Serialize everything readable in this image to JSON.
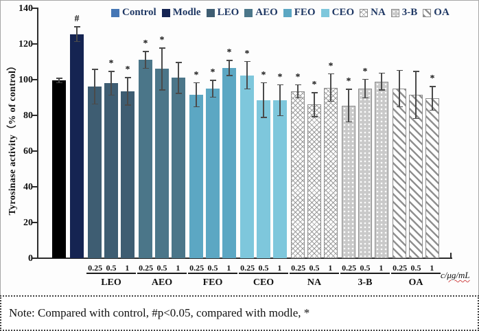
{
  "note": {
    "text": "Note: Compared with control, #p<0.05, compared with modle, *"
  },
  "chart_data": {
    "type": "bar",
    "title": "",
    "ylabel": "Tyrosinase activity（% of control）",
    "xlabel_prefix": "c/",
    "xlabel_unit": "μg/mL",
    "ylim": [
      0,
      140
    ],
    "yticks": [
      140,
      120,
      100,
      80,
      60,
      40,
      20,
      0
    ],
    "grid": false,
    "legend_position": "top",
    "significance_marks": {
      "hash": "#",
      "star": "*"
    },
    "groups": [
      {
        "name": "Control",
        "bar_color": "#000000",
        "legend_color": "#4576B5",
        "bars": [
          {
            "conc": "",
            "value": 99.5,
            "err": 1.5,
            "sig": ""
          }
        ]
      },
      {
        "name": "Modle",
        "bar_color": "#152452",
        "legend_color": "#152452",
        "bars": [
          {
            "conc": "",
            "value": 125.5,
            "err": 4.5,
            "sig": "#"
          }
        ]
      },
      {
        "name": "LEO",
        "bar_color": "#3E5D72",
        "legend_color": "#3E5D72",
        "bars": [
          {
            "conc": "0.25",
            "value": 96,
            "err": 10,
            "sig": ""
          },
          {
            "conc": "0.5",
            "value": 98,
            "err": 7,
            "sig": "*"
          },
          {
            "conc": "1",
            "value": 93.5,
            "err": 8,
            "sig": "*"
          }
        ]
      },
      {
        "name": "AEO",
        "bar_color": "#4B7689",
        "legend_color": "#4B7689",
        "bars": [
          {
            "conc": "0.25",
            "value": 111,
            "err": 5,
            "sig": "*"
          },
          {
            "conc": "0.5",
            "value": 106,
            "err": 12,
            "sig": "*"
          },
          {
            "conc": "1",
            "value": 101,
            "err": 9,
            "sig": ""
          }
        ]
      },
      {
        "name": "FEO",
        "bar_color": "#5CA7C3",
        "legend_color": "#5CA7C3",
        "bars": [
          {
            "conc": "0.25",
            "value": 91.5,
            "err": 7,
            "sig": "*"
          },
          {
            "conc": "0.5",
            "value": 95,
            "err": 5,
            "sig": "*"
          },
          {
            "conc": "1",
            "value": 106.5,
            "err": 4.5,
            "sig": "*"
          }
        ]
      },
      {
        "name": "CEO",
        "bar_color": "#7EC7DC",
        "legend_color": "#7EC7DC",
        "bars": [
          {
            "conc": "0.25",
            "value": 102.5,
            "err": 8,
            "sig": "*"
          },
          {
            "conc": "0.5",
            "value": 88.5,
            "err": 10,
            "sig": "*"
          },
          {
            "conc": "1",
            "value": 88.5,
            "err": 9,
            "sig": "*"
          }
        ]
      },
      {
        "name": "NA",
        "pattern": "crosshatch",
        "bars": [
          {
            "conc": "0.25",
            "value": 93.5,
            "err": 4,
            "sig": "*"
          },
          {
            "conc": "0.5",
            "value": 86,
            "err": 7,
            "sig": "*"
          },
          {
            "conc": "1",
            "value": 95.5,
            "err": 8,
            "sig": "*"
          }
        ]
      },
      {
        "name": "3-B",
        "pattern": "dots",
        "bars": [
          {
            "conc": "0.25",
            "value": 85.5,
            "err": 9.5,
            "sig": "*"
          },
          {
            "conc": "0.5",
            "value": 95,
            "err": 5.5,
            "sig": "*"
          },
          {
            "conc": "1",
            "value": 99,
            "err": 5,
            "sig": ""
          }
        ]
      },
      {
        "name": "OA",
        "pattern": "diagonal",
        "bars": [
          {
            "conc": "0.25",
            "value": 95,
            "err": 10.5,
            "sig": ""
          },
          {
            "conc": "0.5",
            "value": 91.5,
            "err": 13.5,
            "sig": ""
          },
          {
            "conc": "1",
            "value": 89.5,
            "err": 7,
            "sig": "*"
          }
        ]
      }
    ],
    "legend": [
      {
        "label": "Control",
        "swatch": "solid",
        "color": "#4576B5"
      },
      {
        "label": "Modle",
        "swatch": "solid",
        "color": "#152452"
      },
      {
        "label": "LEO",
        "swatch": "solid",
        "color": "#3E5D72"
      },
      {
        "label": "AEO",
        "swatch": "solid",
        "color": "#4B7689"
      },
      {
        "label": "FEO",
        "swatch": "solid",
        "color": "#5CA7C3"
      },
      {
        "label": "CEO",
        "swatch": "solid",
        "color": "#7EC7DC"
      },
      {
        "label": "NA",
        "swatch": "crosshatch",
        "color": "#9a9a9a"
      },
      {
        "label": "3-B",
        "swatch": "dots",
        "color": "#c9c9c9"
      },
      {
        "label": "OA",
        "swatch": "diagonal",
        "color": "#8f8f8f"
      }
    ]
  }
}
